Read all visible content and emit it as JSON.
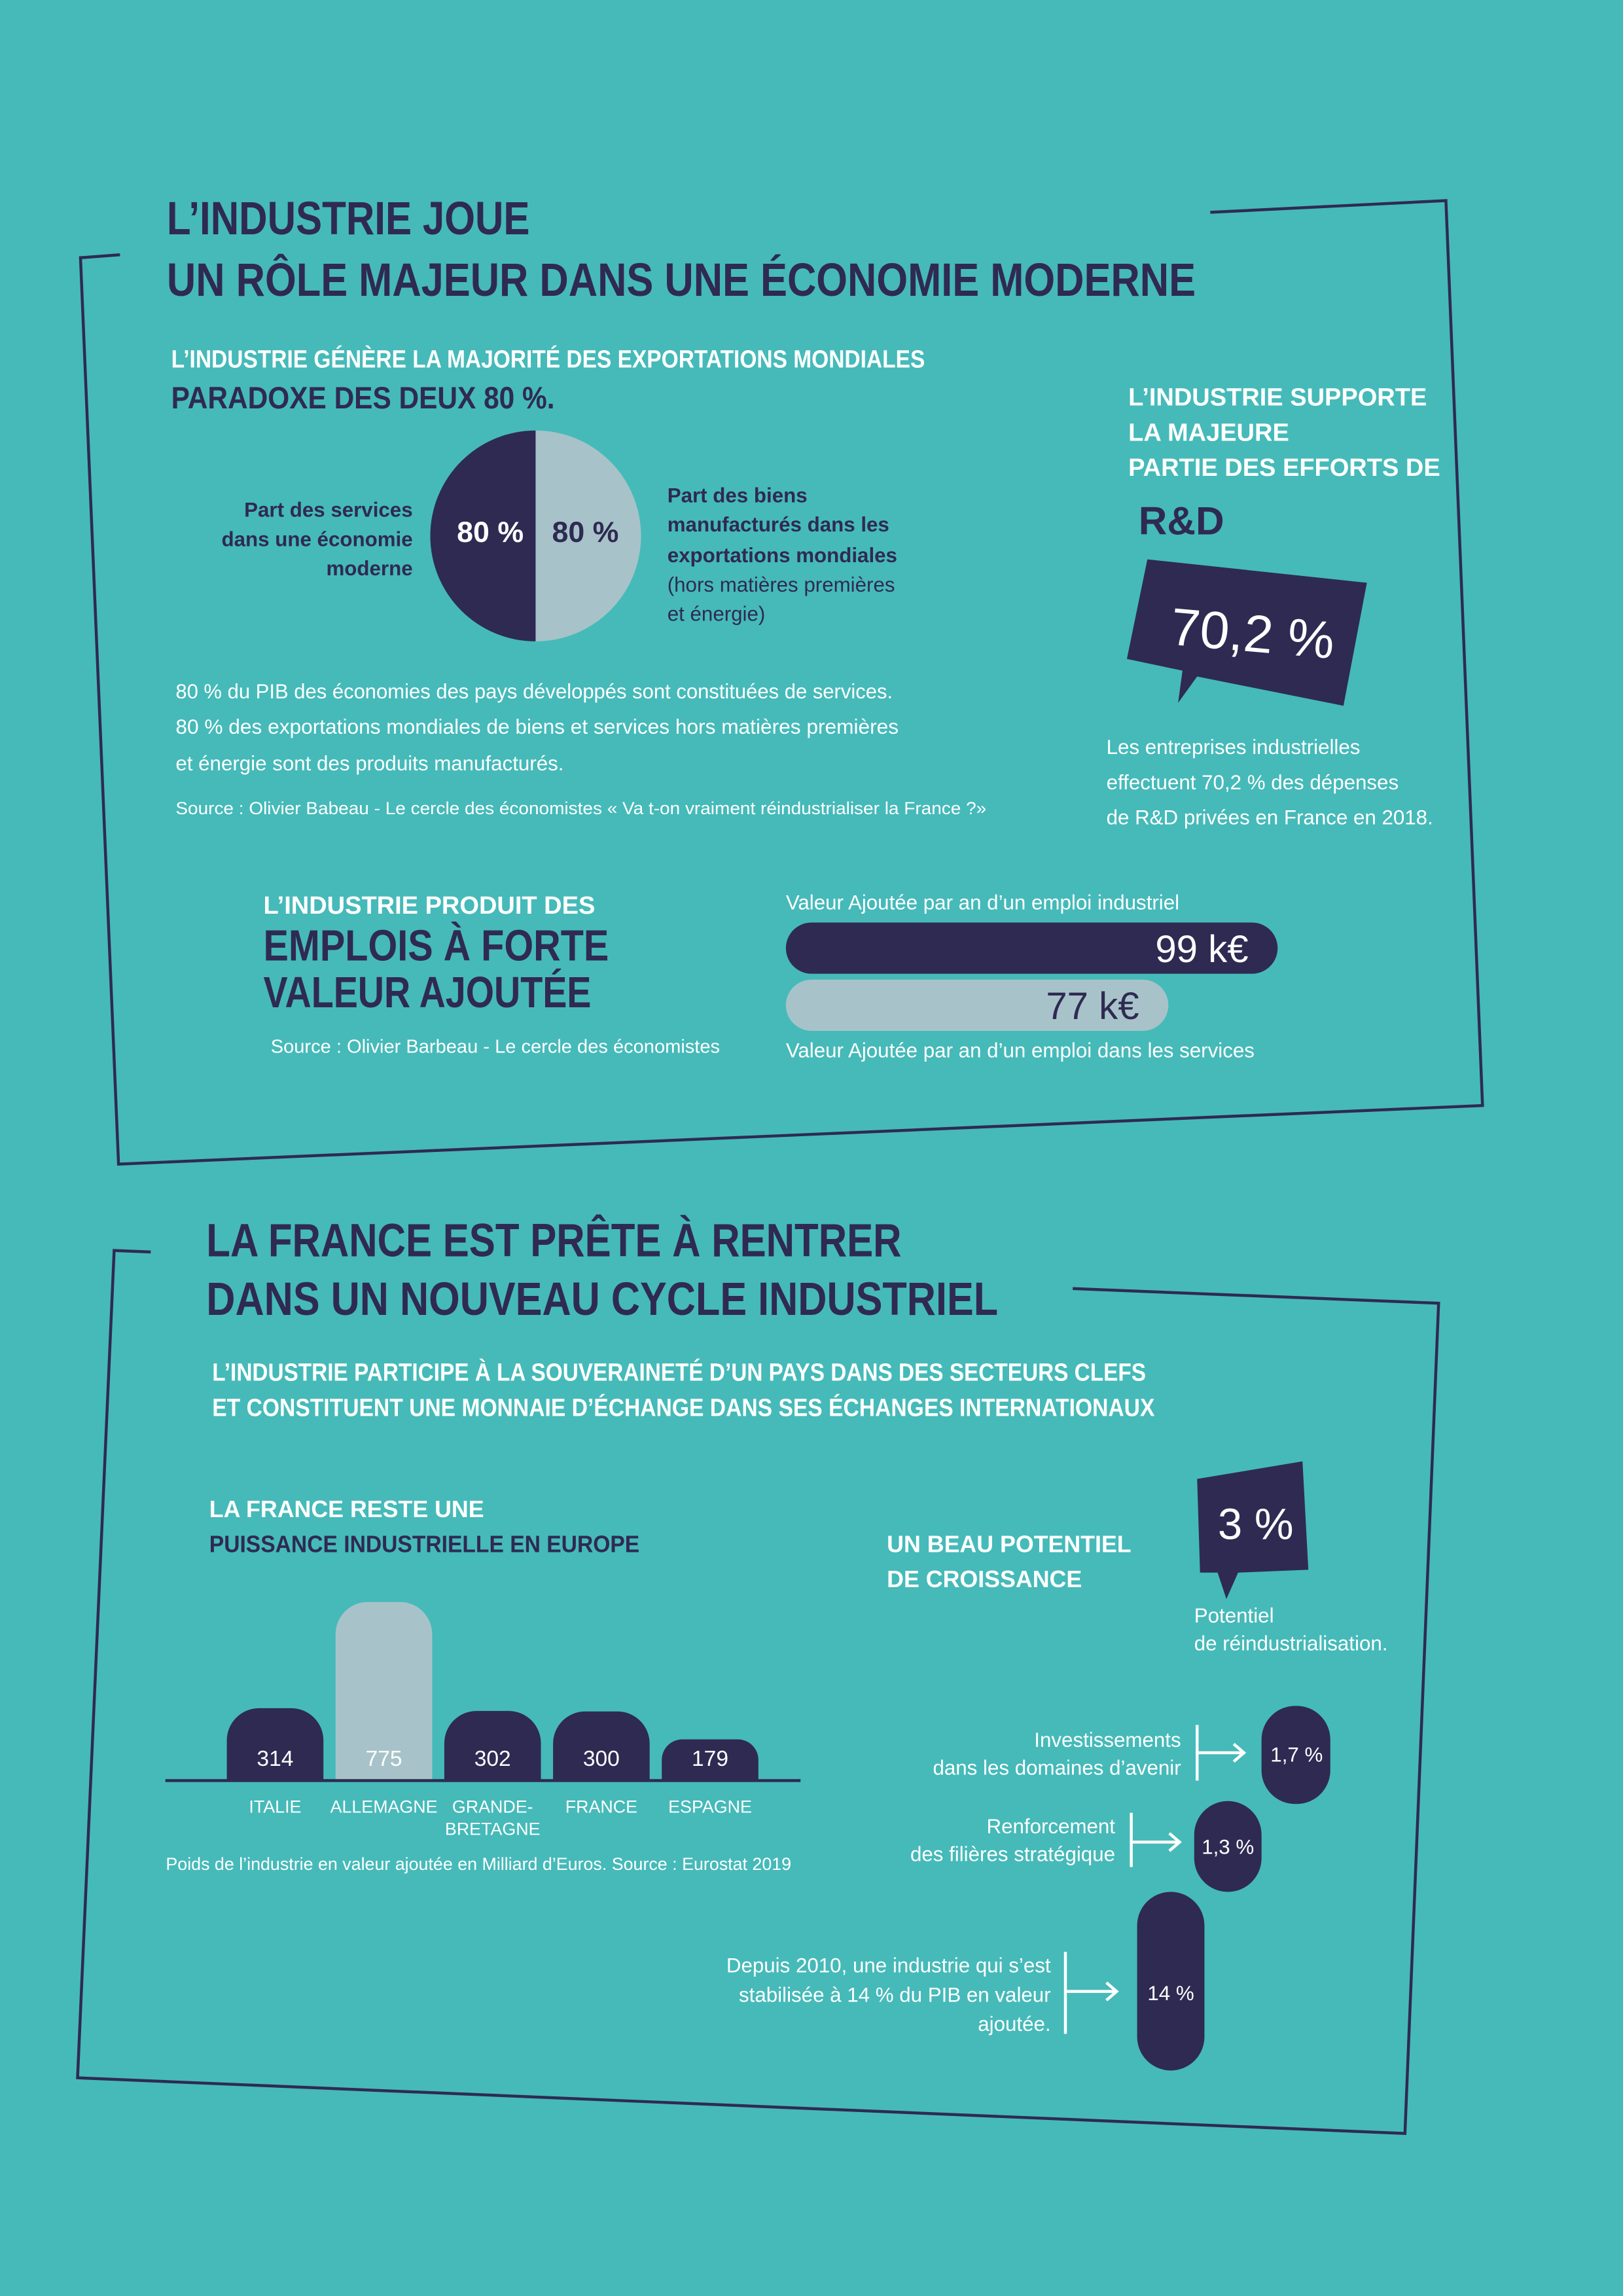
{
  "section1": {
    "title_lines": [
      "L’INDUSTRIE JOUE",
      "UN RÔLE MAJEUR DANS UNE ÉCONOMIE MODERNE"
    ],
    "exports": {
      "heading_lines": [
        "L’INDUSTRIE GÉNÈRE LA MAJORITÉ DES EXPORTATIONS MONDIALES",
        "PARADOXE DES DEUX 80 %."
      ],
      "left_label_lines": [
        "Part des services",
        "dans une économie",
        "moderne"
      ],
      "left_value": "80 %",
      "right_value": "80 %",
      "right_label_lines": [
        "Part des biens",
        "manufacturés dans les",
        "exportations mondiales"
      ],
      "right_note_lines": [
        "(hors matières premières",
        "et énergie)"
      ],
      "body_lines": [
        "80 % du PIB des économies des pays développés sont constituées de services.",
        "80 % des exportations mondiales de biens et services hors matières premières",
        "et énergie sont des produits manufacturés."
      ],
      "source": "Source :  Olivier Babeau - Le cercle des économistes « Va t-on vraiment réindustrialiser la France ?»"
    },
    "rd": {
      "heading_lines": [
        "L’INDUSTRIE SUPPORTE",
        "LA MAJEURE",
        "PARTIE DES EFFORTS DE"
      ],
      "heading_big": "R&D",
      "value": "70,2 %",
      "body_lines": [
        "Les entreprises industrielles",
        "effectuent 70,2 % des dépenses",
        "de R&D privées en France en 2018."
      ]
    },
    "jobs": {
      "heading_small": "L’INDUSTRIE PRODUIT DES",
      "heading_big_lines": [
        "EMPLOIS À FORTE",
        "VALEUR AJOUTÉE"
      ],
      "source": "Source :  Olivier Barbeau - Le cercle des économistes",
      "bars": [
        {
          "label": "Valeur Ajoutée par an d’un emploi industriel",
          "value": 99,
          "value_label": "99 k€",
          "color": "#2f2a52"
        },
        {
          "label": "Valeur Ajoutée par an d’un emploi dans les services",
          "value": 77,
          "value_label": "77 k€",
          "color": "#a7c3c9"
        }
      ]
    }
  },
  "section2": {
    "title_lines": [
      "LA FRANCE EST PRÊTE À RENTRER",
      "DANS UN NOUVEAU CYCLE INDUSTRIEL"
    ],
    "subtitle_lines": [
      "L’INDUSTRIE PARTICIPE À LA SOUVERAINETÉ D’UN PAYS DANS DES SECTEURS CLEFS",
      "ET CONSTITUENT UNE MONNAIE D’ÉCHANGE DANS SES ÉCHANGES INTERNATIONAUX"
    ],
    "europe": {
      "heading_lines": [
        "LA FRANCE RESTE UNE",
        "PUISSANCE INDUSTRIELLE EN EUROPE"
      ],
      "categories": [
        [
          "ITALIE"
        ],
        [
          "ALLEMAGNE"
        ],
        [
          "GRANDE-",
          "BRETAGNE"
        ],
        [
          "FRANCE"
        ],
        [
          "ESPAGNE"
        ]
      ],
      "values": [
        314,
        775,
        302,
        300,
        179
      ],
      "colors": [
        "#2f2a52",
        "#a7c3c9",
        "#2f2a52",
        "#2f2a52",
        "#2f2a52"
      ],
      "caption": "Poids de l’industrie en valeur ajoutée en Milliard d’Euros. Source : Eurostat 2019"
    },
    "growth": {
      "heading_lines": [
        "UN BEAU POTENTIEL",
        "DE CROISSANCE"
      ],
      "value": "3 %",
      "caption_lines": [
        "Potentiel",
        "de réindustrialisation."
      ],
      "items": [
        {
          "label_lines": [
            "Investissements",
            "dans les domaines d’avenir"
          ],
          "value": "1,7 %"
        },
        {
          "label_lines": [
            "Renforcement",
            "des filières stratégique"
          ],
          "value": "1,3 %"
        },
        {
          "label_lines": [
            "Depuis 2010, une industrie qui s’est",
            "stabilisée à 14 % du PIB en valeur",
            "ajoutée."
          ],
          "value": "14 %"
        }
      ]
    }
  }
}
